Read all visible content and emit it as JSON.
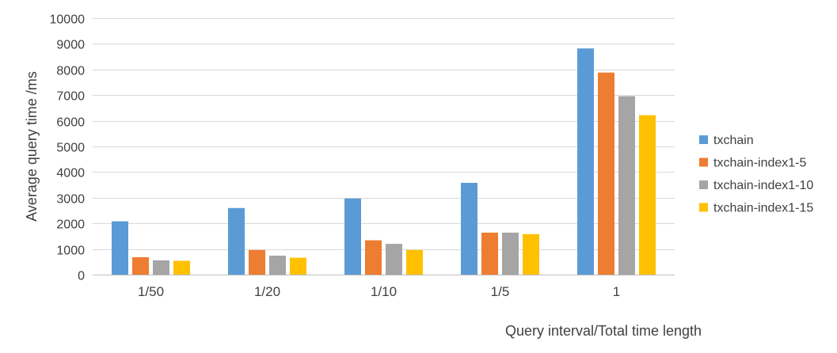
{
  "chart_data": {
    "type": "bar",
    "xlabel": "Query interval/Total time length",
    "ylabel": "Average query time /ms",
    "ylim": [
      0,
      10000
    ],
    "y_ticks": [
      0,
      1000,
      2000,
      3000,
      4000,
      5000,
      6000,
      7000,
      8000,
      9000,
      10000
    ],
    "categories": [
      "1/50",
      "1/20",
      "1/10",
      "1/5",
      "1"
    ],
    "grid": true,
    "legend_position": "right",
    "series": [
      {
        "name": "txchain",
        "color": "#5b9bd5",
        "values": [
          2080,
          2600,
          2970,
          3580,
          8820
        ]
      },
      {
        "name": "txchain-index1-5",
        "color": "#ed7d31",
        "values": [
          680,
          960,
          1340,
          1640,
          7880
        ]
      },
      {
        "name": "txchain-index1-10",
        "color": "#a5a5a5",
        "values": [
          560,
          740,
          1200,
          1640,
          6960
        ]
      },
      {
        "name": "txchain-index1-15",
        "color": "#ffc000",
        "values": [
          540,
          660,
          960,
          1580,
          6220
        ]
      }
    ]
  }
}
